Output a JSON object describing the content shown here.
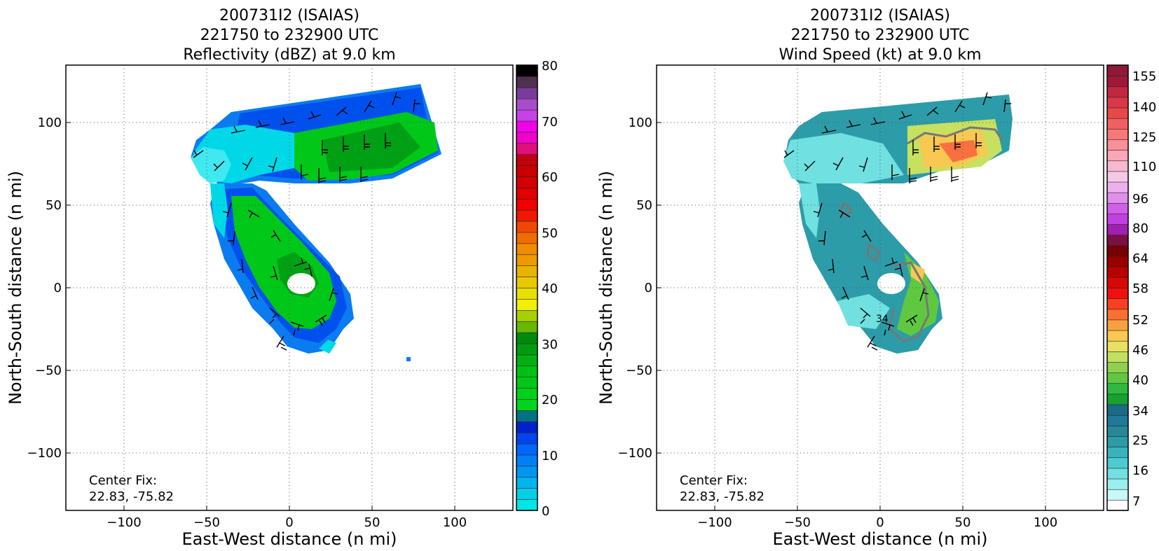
{
  "panels": [
    {
      "id": "reflectivity",
      "title_lines": [
        "200731I2 (ISAIAS)",
        "221750 to 232900 UTC",
        "Reflectivity (dBZ) at 9.0 km"
      ],
      "center_fix_label": "Center Fix:",
      "center_fix_value": "22.83, -75.82",
      "colorbar": {
        "min": 0,
        "max": 80,
        "tick_labels": [
          "80",
          "70",
          "60",
          "50",
          "40",
          "30",
          "20",
          "10",
          "0"
        ],
        "colors": [
          "#00e6e6",
          "#00cfe6",
          "#00b4ee",
          "#0096f0",
          "#0080f5",
          "#0066ff",
          "#0044ee",
          "#0022cc",
          "#007380",
          "#00d41c",
          "#00d01a",
          "#00c818",
          "#00c014",
          "#00b012",
          "#009c10",
          "#008a0c",
          "#66b800",
          "#a8d000",
          "#f0f000",
          "#e8e000",
          "#e8c800",
          "#e8b400",
          "#f09800",
          "#f08c00",
          "#f06c00",
          "#f04800",
          "#f01800",
          "#f00000",
          "#e00000",
          "#d40000",
          "#c80000",
          "#c00010",
          "#e0107a",
          "#f000c8",
          "#f000e8",
          "#c840e8",
          "#a84ccc",
          "#7a3c9c",
          "#503050",
          "#000000"
        ]
      },
      "chart_data": {
        "type": "heatmap",
        "title": "200731I2 (ISAIAS) 221750 to 232900 UTC Reflectivity (dBZ) at 9.0 km",
        "xlabel": "East-West distance (n mi)",
        "ylabel": "North-South distance (n mi)",
        "xlim": [
          -135,
          135
        ],
        "ylim": [
          -135,
          135
        ],
        "x_ticks": [
          -100,
          -50,
          0,
          50,
          100
        ],
        "y_ticks": [
          -100,
          -50,
          0,
          50,
          100
        ],
        "x_tick_labels": [
          "−100",
          "−50",
          "0",
          "50",
          "100"
        ],
        "y_tick_labels": [
          "−100",
          "−50",
          "0",
          "50",
          "100"
        ],
        "grid": true,
        "features": [
          {
            "name": "north band",
            "value_range_dbz": [
              5,
              28
            ]
          },
          {
            "name": "spiral arm",
            "value_range_dbz": [
              8,
              30
            ]
          },
          {
            "name": "eye",
            "value_range_dbz": [
              0,
              0
            ]
          }
        ]
      }
    },
    {
      "id": "wind",
      "title_lines": [
        "200731I2 (ISAIAS)",
        "221750 to 232900 UTC",
        "Wind Speed (kt) at 9.0 km"
      ],
      "center_fix_label": "Center Fix:",
      "center_fix_value": "22.83, -75.82",
      "contour_label": "34",
      "colorbar": {
        "min": 7,
        "max": 160,
        "tick_labels": [
          "155",
          "140",
          "125",
          "110",
          "96",
          "80",
          "64",
          "58",
          "52",
          "46",
          "40",
          "34",
          "25",
          "16",
          "7"
        ],
        "colors": [
          "#ffffff",
          "#c8f8f8",
          "#9aeeee",
          "#70e0e0",
          "#4cccd0",
          "#38b4bc",
          "#2c9ca8",
          "#288898",
          "#20789a",
          "#1a6a88",
          "#18a030",
          "#30b840",
          "#60c840",
          "#90d050",
          "#c0e060",
          "#e8e060",
          "#f8c850",
          "#f8a040",
          "#f87030",
          "#f84020",
          "#f01010",
          "#d80808",
          "#b80000",
          "#980000",
          "#780000",
          "#7a1040",
          "#a020b0",
          "#c040e0",
          "#d060e8",
          "#e090ec",
          "#ecb0ec",
          "#f4c8e8",
          "#f8b8d0",
          "#f8a8b8",
          "#f89098",
          "#f87878",
          "#f06060",
          "#e84848",
          "#d83848",
          "#c02840",
          "#a01838",
          "#901838"
        ]
      },
      "chart_data": {
        "type": "heatmap",
        "title": "200731I2 (ISAIAS) 221750 to 232900 UTC Wind Speed (kt) at 9.0 km",
        "xlabel": "East-West distance (n mi)",
        "ylabel": "North-South distance (n mi)",
        "xlim": [
          -135,
          135
        ],
        "ylim": [
          -135,
          135
        ],
        "x_ticks": [
          -100,
          -50,
          0,
          50,
          100
        ],
        "y_ticks": [
          -100,
          -50,
          0,
          50,
          100
        ],
        "x_tick_labels": [
          "−100",
          "−50",
          "0",
          "50",
          "100"
        ],
        "y_tick_labels": [
          "−100",
          "−50",
          "0",
          "50",
          "100"
        ],
        "grid": true,
        "contour_kt": 34,
        "features": [
          {
            "name": "north band",
            "value_range_kt": [
              16,
              52
            ]
          },
          {
            "name": "spiral arm",
            "value_range_kt": [
              16,
              46
            ]
          }
        ]
      }
    }
  ],
  "colors": {
    "grid": "#555555",
    "barb": "#000000",
    "contour": "#777777"
  }
}
